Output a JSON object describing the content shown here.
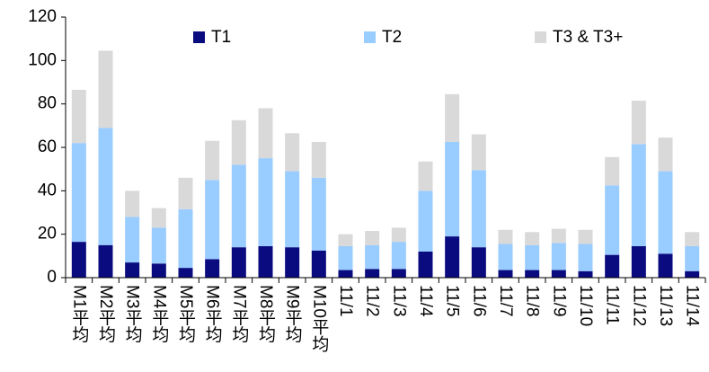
{
  "chart_data": {
    "type": "stacked_bar",
    "categories": [
      "M1平均",
      "M2平均",
      "M3平均",
      "M4平均",
      "M5平均",
      "M6平均",
      "M7平均",
      "M8平均",
      "M9平均",
      "M10平均",
      "11/1",
      "11/2",
      "11/3",
      "11/4",
      "11/5",
      "11/6",
      "11/7",
      "11/8",
      "11/9",
      "11/10",
      "11/11",
      "11/12",
      "11/13",
      "11/14"
    ],
    "series": [
      {
        "name": "T1",
        "color": "#0b0b80",
        "values": [
          16.5,
          15,
          7,
          6.5,
          4.5,
          8.5,
          14,
          14.5,
          14,
          12.5,
          3.5,
          4,
          4,
          12,
          19,
          14,
          3.5,
          3.5,
          3.5,
          3,
          10.5,
          14.5,
          11,
          3
        ]
      },
      {
        "name": "T2",
        "color": "#99ccff",
        "values": [
          45.5,
          54,
          21,
          16.5,
          27,
          36.5,
          38,
          40.5,
          35,
          33.5,
          11,
          11,
          12.5,
          28,
          43.5,
          35.5,
          12,
          11.5,
          12.5,
          12.5,
          32,
          47,
          38,
          11.5
        ]
      },
      {
        "name": "T3 & T3+",
        "color": "#d9d9d9",
        "values": [
          24.5,
          35.5,
          12,
          9,
          14.5,
          18,
          20.5,
          23,
          17.5,
          16.5,
          5.5,
          6.5,
          6.5,
          13.5,
          22,
          16.5,
          6.5,
          6,
          6.5,
          6.5,
          13,
          20,
          15.5,
          6.5
        ]
      }
    ],
    "ylim": [
      0,
      120
    ],
    "yticks": [
      0,
      20,
      40,
      60,
      80,
      100,
      120
    ],
    "grid": false,
    "legend": "top"
  }
}
